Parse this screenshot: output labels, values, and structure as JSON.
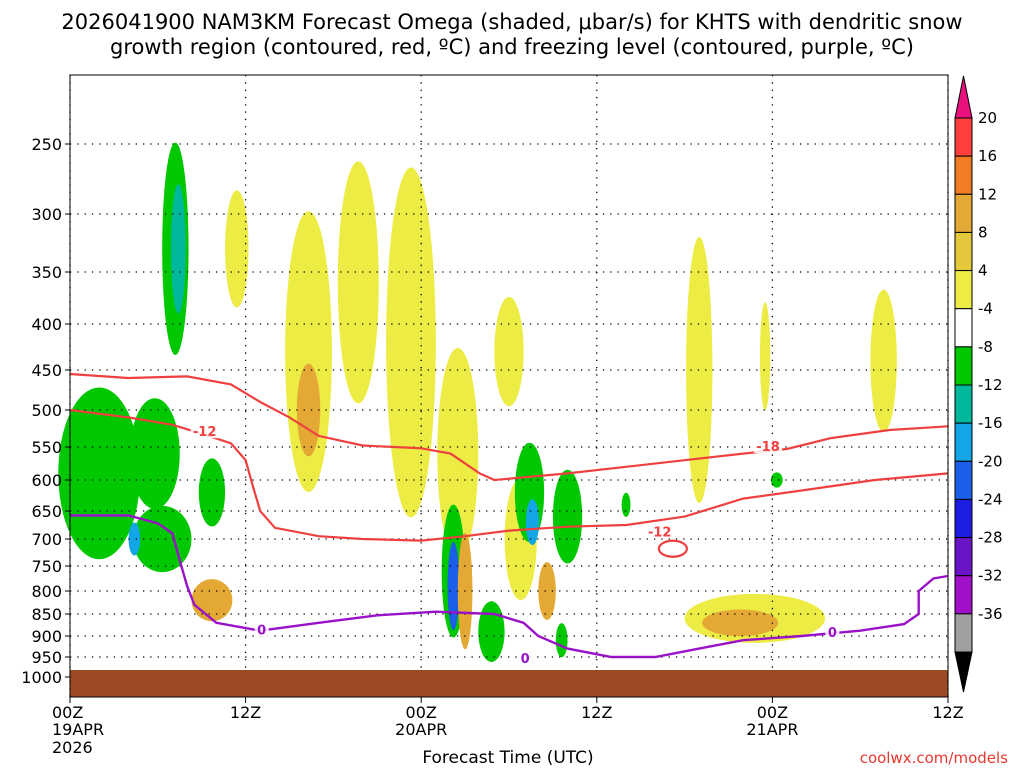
{
  "chart_data": {
    "type": "heatmap",
    "title_line1": "2026041900 NAM3KM Forecast Omega (shaded, μbar/s) for KHTS with dendritic snow",
    "title_line2": "growth region (contoured, red, ºC) and freezing level (contoured, purple, ºC)",
    "xlabel": "Forecast Time (UTC)",
    "ylabel": "",
    "y_ticks": [
      250,
      300,
      350,
      400,
      450,
      500,
      550,
      600,
      650,
      700,
      750,
      800,
      850,
      900,
      950,
      1000
    ],
    "x_ticks": [
      {
        "hour": 0,
        "l1": "00Z",
        "l2": "19APR",
        "l3": "2026"
      },
      {
        "hour": 12,
        "l1": "12Z",
        "l2": "",
        "l3": ""
      },
      {
        "hour": 24,
        "l1": "00Z",
        "l2": "20APR",
        "l3": ""
      },
      {
        "hour": 36,
        "l1": "12Z",
        "l2": "",
        "l3": ""
      },
      {
        "hour": 48,
        "l1": "00Z",
        "l2": "21APR",
        "l3": ""
      },
      {
        "hour": 60,
        "l1": "12Z",
        "l2": "",
        "l3": ""
      }
    ],
    "xlim": [
      0,
      60
    ],
    "ylim": [
      1000,
      200
    ],
    "grid": true,
    "colorbar": {
      "labels": [
        "20",
        "16",
        "12",
        "8",
        "4",
        "-4",
        "-8",
        "-12",
        "-16",
        "-20",
        "-24",
        "-28",
        "-32",
        "-36"
      ],
      "colors": [
        "#ff3e3e",
        "#f07c24",
        "#e3a934",
        "#e3c83c",
        "#ecec44",
        "#ffffff",
        "#00c800",
        "#00b99c",
        "#12a6e6",
        "#1b5fe8",
        "#1c1ee0",
        "#6a14c8",
        "#a010c8",
        "#a0a0a0"
      ],
      "top_arrow_color": "#e8117e",
      "bottom_arrow_color": "#000000"
    },
    "omega_blobs": [
      {
        "t": 7.2,
        "p": 330,
        "dt": 0.9,
        "dp": 90,
        "v": -9,
        "n": "blob-1"
      },
      {
        "t": 7.4,
        "p": 330,
        "dt": 0.5,
        "dp": 55,
        "v": -15,
        "n": "blob-2"
      },
      {
        "t": 11.4,
        "p": 330,
        "dt": 0.8,
        "dp": 50,
        "v": 5,
        "n": "blob-3"
      },
      {
        "t": 16.3,
        "p": 430,
        "dt": 1.6,
        "dp": 150,
        "v": 6,
        "n": "blob-4"
      },
      {
        "t": 16.3,
        "p": 500,
        "dt": 0.8,
        "dp": 60,
        "v": 9,
        "n": "blob-5"
      },
      {
        "t": 19.7,
        "p": 360,
        "dt": 1.4,
        "dp": 110,
        "v": 5,
        "n": "blob-6"
      },
      {
        "t": 23.3,
        "p": 420,
        "dt": 1.7,
        "dp": 180,
        "v": 5,
        "n": "blob-7"
      },
      {
        "t": 26.5,
        "p": 560,
        "dt": 1.4,
        "dp": 150,
        "v": 5,
        "n": "blob-8"
      },
      {
        "t": 30.0,
        "p": 430,
        "dt": 1.0,
        "dp": 60,
        "v": 5,
        "n": "blob-9"
      },
      {
        "t": 2.0,
        "p": 590,
        "dt": 2.8,
        "dp": 130,
        "v": -8,
        "n": "blob-10"
      },
      {
        "t": 5.8,
        "p": 560,
        "dt": 1.7,
        "dp": 80,
        "v": -8,
        "n": "blob-11"
      },
      {
        "t": 6.3,
        "p": 700,
        "dt": 2.0,
        "dp": 60,
        "v": -10,
        "n": "blob-12"
      },
      {
        "t": 4.4,
        "p": 700,
        "dt": 0.4,
        "dp": 30,
        "v": -16,
        "n": "blob-13"
      },
      {
        "t": 9.7,
        "p": 620,
        "dt": 0.9,
        "dp": 55,
        "v": -9,
        "n": "blob-14"
      },
      {
        "t": 9.7,
        "p": 820,
        "dt": 1.4,
        "dp": 45,
        "v": 8,
        "n": "blob-15"
      },
      {
        "t": 26.2,
        "p": 760,
        "dt": 0.8,
        "dp": 130,
        "v": -10,
        "n": "blob-16"
      },
      {
        "t": 26.2,
        "p": 790,
        "dt": 0.4,
        "dp": 90,
        "v": -22,
        "n": "blob-17"
      },
      {
        "t": 27.0,
        "p": 800,
        "dt": 0.5,
        "dp": 120,
        "v": 8,
        "n": "blob-18"
      },
      {
        "t": 28.8,
        "p": 890,
        "dt": 0.9,
        "dp": 70,
        "v": -10,
        "n": "blob-19"
      },
      {
        "t": 30.8,
        "p": 700,
        "dt": 1.1,
        "dp": 110,
        "v": 5,
        "n": "blob-20"
      },
      {
        "t": 31.4,
        "p": 620,
        "dt": 1.0,
        "dp": 80,
        "v": -9,
        "n": "blob-21"
      },
      {
        "t": 31.6,
        "p": 670,
        "dt": 0.45,
        "dp": 40,
        "v": -18,
        "n": "blob-22"
      },
      {
        "t": 32.6,
        "p": 800,
        "dt": 0.6,
        "dp": 60,
        "v": 9,
        "n": "blob-23"
      },
      {
        "t": 34.0,
        "p": 660,
        "dt": 1.0,
        "dp": 80,
        "v": -9,
        "n": "blob-24"
      },
      {
        "t": 38.0,
        "p": 640,
        "dt": 0.3,
        "dp": 20,
        "v": -9,
        "n": "blob-25"
      },
      {
        "t": 33.6,
        "p": 910,
        "dt": 0.4,
        "dp": 40,
        "v": -8,
        "n": "blob-26"
      },
      {
        "t": 43.0,
        "p": 450,
        "dt": 0.9,
        "dp": 150,
        "v": 5,
        "n": "blob-27"
      },
      {
        "t": 46.8,
        "p": 860,
        "dt": 4.8,
        "dp": 55,
        "v": 5,
        "n": "blob-28"
      },
      {
        "t": 45.8,
        "p": 870,
        "dt": 2.6,
        "dp": 30,
        "v": 9,
        "n": "blob-29"
      },
      {
        "t": 55.6,
        "p": 440,
        "dt": 0.9,
        "dp": 80,
        "v": 5,
        "n": "blob-30"
      },
      {
        "t": 47.5,
        "p": 435,
        "dt": 0.35,
        "dp": 60,
        "v": 5,
        "n": "blob-31"
      },
      {
        "t": 48.3,
        "p": 600,
        "dt": 0.4,
        "dp": 12,
        "v": -8,
        "n": "blob-32"
      }
    ],
    "red_contours": [
      {
        "label": "-18",
        "label_at": [
          47.7,
          550
        ],
        "pts": [
          [
            0,
            455
          ],
          [
            4,
            460
          ],
          [
            8,
            458
          ],
          [
            11,
            468
          ],
          [
            13,
            490
          ],
          [
            15,
            510
          ],
          [
            17,
            535
          ],
          [
            20,
            548
          ],
          [
            24,
            552
          ],
          [
            26,
            560
          ],
          [
            28,
            590
          ],
          [
            29,
            600
          ],
          [
            34,
            590
          ],
          [
            38,
            580
          ],
          [
            42,
            570
          ],
          [
            46,
            560
          ],
          [
            49,
            553
          ],
          [
            52,
            538
          ],
          [
            56,
            527
          ],
          [
            60,
            522
          ]
        ]
      },
      {
        "label": "-12",
        "label_at": [
          9.2,
          530
        ],
        "pts": [
          [
            0,
            500
          ],
          [
            4,
            510
          ],
          [
            7,
            520
          ],
          [
            9,
            532
          ],
          [
            11,
            545
          ],
          [
            12,
            570
          ],
          [
            12.5,
            610
          ],
          [
            13,
            650
          ],
          [
            14,
            680
          ],
          [
            17,
            695
          ],
          [
            20,
            700
          ],
          [
            24,
            703
          ],
          [
            27,
            695
          ],
          [
            30,
            685
          ],
          [
            34,
            678
          ],
          [
            38,
            675
          ],
          [
            42,
            660
          ],
          [
            46,
            630
          ],
          [
            50,
            617
          ],
          [
            55,
            600
          ],
          [
            60,
            590
          ]
        ]
      },
      {
        "label": "-12",
        "label_at": [
          40.3,
          688
        ],
        "pts": []
      }
    ],
    "purple_contour": {
      "label": "0",
      "label_at": [
        13.1,
        888
      ],
      "pts": [
        [
          0,
          658
        ],
        [
          4,
          658
        ],
        [
          6,
          672
        ],
        [
          7,
          690
        ],
        [
          7.5,
          740
        ],
        [
          8,
          790
        ],
        [
          8.5,
          830
        ],
        [
          10,
          870
        ],
        [
          13,
          888
        ],
        [
          17,
          870
        ],
        [
          21,
          853
        ],
        [
          25,
          845
        ],
        [
          29,
          850
        ],
        [
          31,
          870
        ],
        [
          32,
          900
        ],
        [
          34,
          930
        ],
        [
          37,
          950
        ],
        [
          40,
          950
        ],
        [
          43,
          930
        ],
        [
          46,
          910
        ],
        [
          50,
          900
        ],
        [
          54,
          888
        ],
        [
          57,
          873
        ],
        [
          58,
          850
        ],
        [
          58,
          800
        ],
        [
          59,
          775
        ],
        [
          60,
          770
        ]
      ]
    }
  },
  "footer": {
    "source": "coolwx.com/models"
  }
}
